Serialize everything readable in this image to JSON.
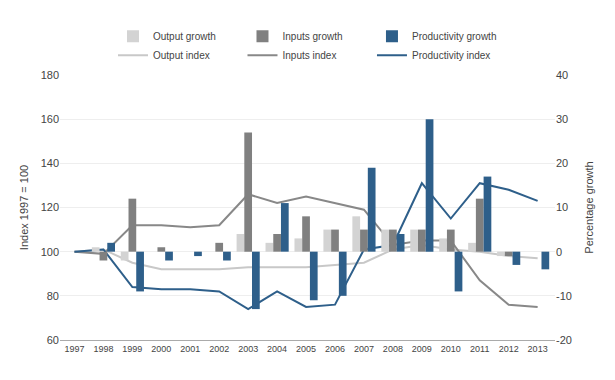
{
  "chart_data": {
    "type": "bar_line",
    "ylabel": "Index 1997 = 100",
    "y2label": "Percentage growth",
    "x": [
      1997,
      1998,
      1999,
      2000,
      2001,
      2002,
      2003,
      2004,
      2005,
      2006,
      2007,
      2008,
      2009,
      2010,
      2011,
      2012,
      2013
    ],
    "series": [
      {
        "name": "Output growth",
        "type": "bar",
        "axis": "y2",
        "color": "#d3d3d3",
        "values": [
          0,
          1,
          -2,
          0,
          0,
          0,
          4,
          2,
          3,
          5,
          8,
          5,
          5,
          3,
          2,
          -1,
          0
        ]
      },
      {
        "name": "Inputs growth",
        "type": "bar",
        "axis": "y2",
        "color": "#808080",
        "values": [
          0,
          -2,
          12,
          1,
          0,
          2,
          27,
          4,
          8,
          5,
          5,
          5,
          5,
          5,
          12,
          -1,
          0
        ]
      },
      {
        "name": "Productivity growth",
        "type": "bar",
        "axis": "y2",
        "color": "#2e5f8a",
        "values": [
          0,
          2,
          -9,
          -2,
          -1,
          -2,
          -13,
          11,
          -11,
          -10,
          19,
          4,
          30,
          -9,
          17,
          -3,
          -4
        ]
      },
      {
        "name": "Output index",
        "type": "line",
        "color": "#c8c8c8",
        "values": [
          100,
          101,
          95,
          92,
          92,
          92,
          93,
          93,
          93,
          94,
          95,
          101,
          103,
          101,
          100,
          98,
          97
        ]
      },
      {
        "name": "Inputs index",
        "type": "line",
        "color": "#888888",
        "values": [
          100,
          99,
          112,
          112,
          111,
          112,
          126,
          122,
          125,
          122,
          119,
          103,
          105,
          105,
          87,
          76,
          75
        ]
      },
      {
        "name": "Productivity index",
        "type": "line",
        "color": "#2e5f8a",
        "values": [
          100,
          101,
          84,
          83,
          83,
          82,
          74,
          82,
          75,
          76,
          101,
          103,
          131,
          115,
          131,
          128,
          123
        ]
      }
    ],
    "xlim": [
      1996.5,
      2013.6
    ],
    "xticks": [
      1997,
      1998,
      1999,
      2000,
      2001,
      2002,
      2003,
      2004,
      2005,
      2006,
      2007,
      2008,
      2009,
      2010,
      2011,
      2012,
      2013
    ],
    "ylim": [
      60,
      180
    ],
    "yticks": [
      60,
      80,
      100,
      120,
      140,
      160,
      180
    ],
    "y2lim": [
      -20,
      40
    ],
    "y2ticks": [
      -20,
      -10,
      0,
      10,
      20,
      30,
      40
    ],
    "grid": true,
    "legend": "top"
  }
}
